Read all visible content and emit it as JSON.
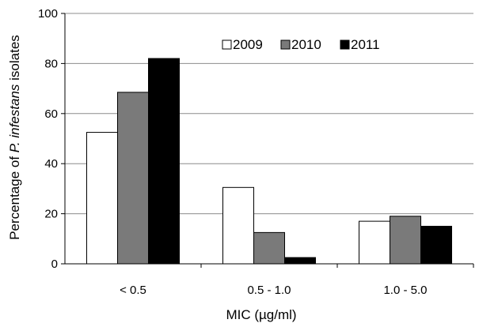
{
  "chart_data": {
    "type": "bar",
    "categories": [
      "< 0.5",
      "0.5 - 1.0",
      "1.0 - 5.0"
    ],
    "series": [
      {
        "name": "2009",
        "values": [
          52.5,
          30.5,
          17
        ],
        "color": "#ffffff"
      },
      {
        "name": "2010",
        "values": [
          68.5,
          12.5,
          19
        ],
        "color": "#7a7a7a"
      },
      {
        "name": "2011",
        "values": [
          82,
          2.5,
          15
        ],
        "color": "#000000"
      }
    ],
    "xlabel": "MIC (µg/ml)",
    "ylabel_parts": [
      "Percentage of ",
      "P. infestans",
      " isolates"
    ],
    "ylim": [
      0,
      100
    ],
    "yticks": [
      0,
      20,
      40,
      60,
      80,
      100
    ],
    "grid": true,
    "legend_position": "top-right"
  }
}
